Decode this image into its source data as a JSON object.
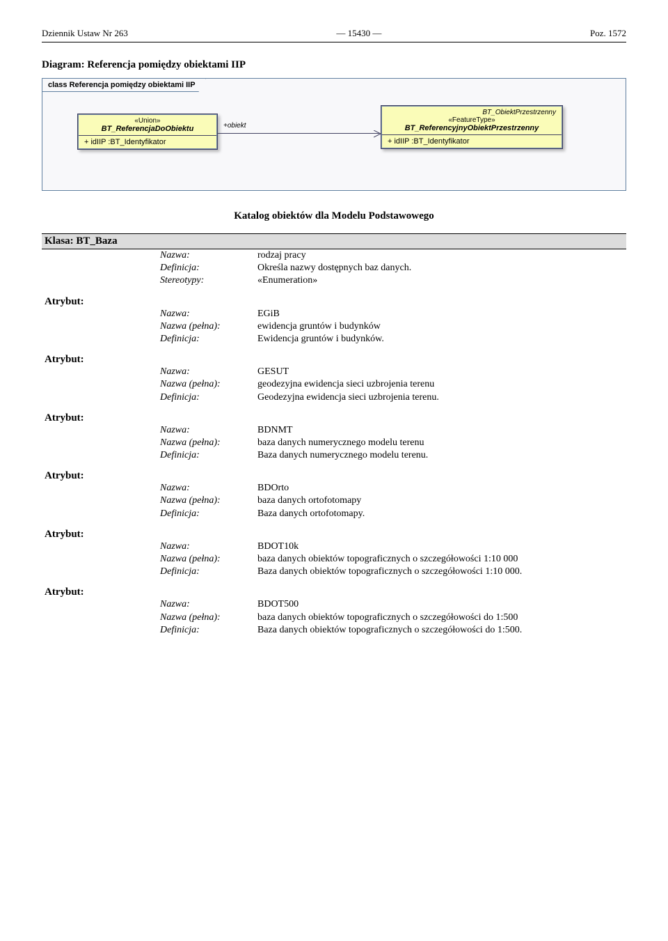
{
  "header": {
    "left": "Dziennik Ustaw Nr 263",
    "center": "— 15430 —",
    "right": "Poz. 1572"
  },
  "diagram": {
    "title": "Diagram: Referencja pomiędzy obiektami IIP",
    "frame_label": "class Referencja pomiędzy obiektami IIP",
    "left_box": {
      "stereotype": "«Union»",
      "name": "BT_ReferencjaDoObiektu",
      "attr": "+   idIIP  :BT_Identyfikator"
    },
    "right_box": {
      "top_name": "BT_ObiektPrzestrzenny",
      "stereotype": "«FeatureType»",
      "name": "BT_ReferencyjnyObiektPrzestrzenny",
      "attr": "+   idIIP  :BT_Identyfikator"
    },
    "assoc_label": "+obiekt"
  },
  "catalog_title": "Katalog obiektów dla Modelu Podstawowego",
  "class_header": "Klasa: BT_Baza",
  "labels": {
    "nazwa": "Nazwa:",
    "definicja": "Definicja:",
    "stereotypy": "Stereotypy:",
    "nazwa_pelna": "Nazwa (pełna):",
    "atrybut": "Atrybut:"
  },
  "main": {
    "nazwa": "rodzaj pracy",
    "definicja": "Określa nazwy dostępnych baz danych.",
    "stereotypy": "«Enumeration»"
  },
  "attrs": [
    {
      "nazwa": "EGiB",
      "pelna": "ewidencja gruntów i budynków",
      "def": "Ewidencja gruntów i budynków."
    },
    {
      "nazwa": "GESUT",
      "pelna": "geodezyjna ewidencja sieci uzbrojenia terenu",
      "def": "Geodezyjna ewidencja sieci uzbrojenia terenu."
    },
    {
      "nazwa": "BDNMT",
      "pelna": "baza danych numerycznego modelu terenu",
      "def": "Baza danych numerycznego modelu terenu."
    },
    {
      "nazwa": "BDOrto",
      "pelna": "baza danych ortofotomapy",
      "def": "Baza danych ortofotomapy."
    },
    {
      "nazwa": "BDOT10k",
      "pelna": "baza danych obiektów topograficznych o szczegółowości 1:10 000",
      "def": "Baza danych obiektów topograficznych o szczegółowości 1:10 000."
    },
    {
      "nazwa": "BDOT500",
      "pelna": "baza danych obiektów topograficznych o szczegółowości do 1:500",
      "def": "Baza danych obiektów topograficznych o szczegółowości do 1:500."
    }
  ]
}
